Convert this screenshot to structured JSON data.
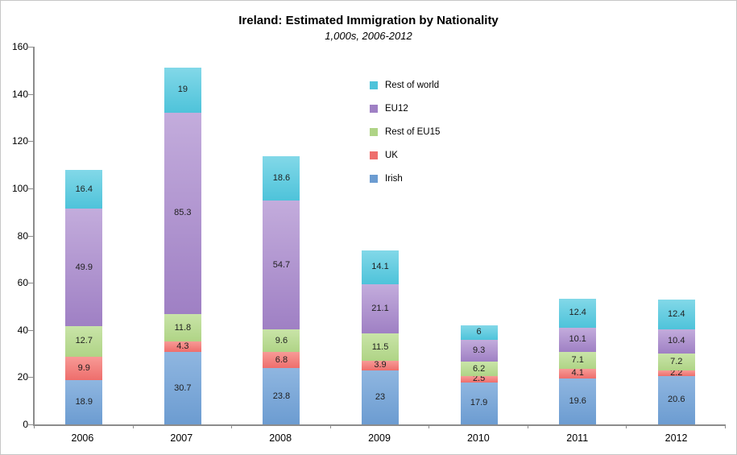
{
  "title": "Ireland: Estimated Immigration by Nationality",
  "subtitle": "1,000s, 2006-2012",
  "colors": {
    "axis": "#8c8c8c",
    "frame_border": "#c6c6c6",
    "label_text": "#1f1f1f"
  },
  "chart_data": {
    "type": "bar",
    "stacked": true,
    "title": "Ireland: Estimated Immigration by Nationality",
    "subtitle": "1,000s, 2006-2012",
    "xlabel": "",
    "ylabel": "",
    "ylim": [
      0,
      160
    ],
    "yticks": [
      0,
      20,
      40,
      60,
      80,
      100,
      120,
      140,
      160
    ],
    "grid": false,
    "legend_position": "inner-top-center",
    "categories": [
      "2006",
      "2007",
      "2008",
      "2009",
      "2010",
      "2011",
      "2012"
    ],
    "series": [
      {
        "name": "Irish",
        "color": "#6c9cd1",
        "color_light": "#8fb6e0",
        "values": [
          18.9,
          30.7,
          23.8,
          23,
          17.9,
          19.6,
          20.6
        ]
      },
      {
        "name": "UK",
        "color": "#ee6e6c",
        "color_light": "#f79a96",
        "values": [
          9.9,
          4.3,
          6.8,
          3.9,
          2.5,
          4.1,
          2.2
        ]
      },
      {
        "name": "Rest of EU15",
        "color": "#afd486",
        "color_light": "#c9e4a8",
        "values": [
          12.7,
          11.8,
          9.6,
          11.5,
          6.2,
          7.1,
          7.2
        ]
      },
      {
        "name": "EU12",
        "color": "#9f80c4",
        "color_light": "#c3acdc",
        "values": [
          49.9,
          85.3,
          54.7,
          21.1,
          9.3,
          10.1,
          10.4
        ]
      },
      {
        "name": "Rest of world",
        "color": "#4ec3da",
        "color_light": "#82d8e8",
        "values": [
          16.4,
          19,
          18.6,
          14.1,
          6,
          12.4,
          12.4
        ]
      }
    ],
    "legend": [
      "Rest of world",
      "EU12",
      "Rest of EU15",
      "UK",
      "Irish"
    ]
  }
}
